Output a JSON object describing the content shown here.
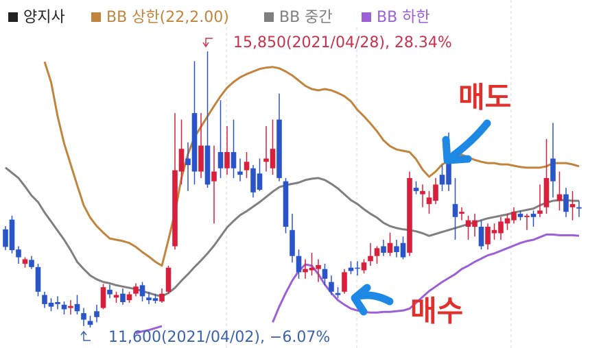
{
  "chart_data": {
    "type": "candlestick",
    "series": [
      {
        "name": "양지사",
        "type": "candlestick",
        "color": "#222222",
        "up_color": "#d81f3c",
        "down_color": "#2a55c9",
        "open": [
          13110,
          13260,
          12800,
          12580,
          12640,
          12530,
          12100,
          11980,
          11990,
          11950,
          11900,
          11960,
          11820,
          11700,
          11850,
          11900,
          12180,
          12060,
          12120,
          12020,
          12120,
          12250,
          12060,
          12050,
          12000,
          12150,
          12850,
          14000,
          14200,
          14900,
          14000,
          14400,
          13850,
          14300,
          14050,
          14300,
          14000,
          14020,
          14050,
          13970,
          14150,
          14050,
          14800,
          13850,
          13100,
          12700,
          12450,
          12480,
          12500,
          12500,
          12300,
          12130,
          12150,
          12520,
          12520,
          12480,
          12620,
          12700,
          12850,
          12750,
          12850,
          12900,
          12750,
          13750,
          13650,
          13500,
          13550,
          13950,
          14150,
          13500,
          13350,
          13150,
          13150,
          13150,
          12880,
          13050,
          13050,
          13200,
          13250,
          13350,
          13300,
          13350,
          13350,
          13450,
          14200,
          13550,
          13650,
          13450,
          13450
        ],
        "high": [
          13160,
          13320,
          12850,
          12680,
          12700,
          12580,
          12150,
          12050,
          12080,
          12000,
          12020,
          12100,
          11900,
          11780,
          11950,
          12270,
          12260,
          12150,
          12200,
          12150,
          12280,
          12300,
          12150,
          12120,
          12200,
          12550,
          14900,
          14800,
          14450,
          15700,
          14900,
          15850,
          14400,
          15100,
          14700,
          14800,
          14200,
          14300,
          14100,
          14200,
          14700,
          14800,
          15200,
          13900,
          13350,
          12800,
          12650,
          12750,
          12650,
          12580,
          12400,
          12220,
          12500,
          12620,
          12620,
          12650,
          12900,
          12850,
          12950,
          13060,
          12950,
          13000,
          14000,
          13850,
          13800,
          13700,
          13900,
          14100,
          14600,
          13900,
          13450,
          13320,
          13350,
          13250,
          13200,
          13200,
          13300,
          13350,
          13450,
          13400,
          13350,
          13400,
          13800,
          14500,
          14750,
          14000,
          13750,
          13700,
          13550
        ],
        "low": [
          12790,
          12740,
          12580,
          12520,
          12500,
          12080,
          11900,
          11850,
          11880,
          11800,
          11800,
          11800,
          11620,
          11600,
          11680,
          11880,
          12050,
          11980,
          11950,
          11980,
          12080,
          12000,
          11960,
          11970,
          11980,
          12120,
          12800,
          13800,
          13700,
          13800,
          13900,
          13750,
          13200,
          13900,
          13950,
          13900,
          13850,
          13900,
          13600,
          13700,
          14000,
          13950,
          13850,
          13050,
          12600,
          12350,
          12350,
          12400,
          12300,
          12250,
          12100,
          12050,
          12120,
          12420,
          12400,
          12430,
          12550,
          12580,
          12700,
          12700,
          12680,
          12650,
          12700,
          13650,
          13450,
          13350,
          13500,
          13700,
          13700,
          12950,
          13250,
          12950,
          13000,
          12800,
          12800,
          12950,
          12950,
          13100,
          13200,
          13250,
          13100,
          13150,
          13300,
          13350,
          13600,
          13400,
          13300,
          13250,
          13300
        ],
        "close": [
          12840,
          12790,
          12680,
          12650,
          12530,
          12150,
          11960,
          11920,
          11960,
          11880,
          11930,
          11850,
          11720,
          11640,
          11760,
          12220,
          12110,
          12100,
          11990,
          12110,
          12230,
          12080,
          12020,
          12010,
          12120,
          12520,
          14020,
          14350,
          14100,
          14000,
          14400,
          13800,
          14000,
          14050,
          14300,
          14050,
          13950,
          14150,
          13680,
          13720,
          14200,
          14350,
          13900,
          13150,
          12700,
          12450,
          12500,
          12520,
          12560,
          12350,
          12150,
          12100,
          12450,
          12470,
          12510,
          12600,
          12700,
          12820,
          12750,
          12900,
          12760,
          12680,
          13900,
          13700,
          13700,
          13600,
          13800,
          13800,
          13800,
          13300,
          13380,
          13250,
          13250,
          12850,
          13150,
          13100,
          13230,
          13280,
          13380,
          13300,
          13320,
          13300,
          13400,
          13900,
          13850,
          13650,
          13380,
          13500,
          13430
        ]
      },
      {
        "name": "BB 상한(22,2.00)",
        "type": "line",
        "color": "#c0843c",
        "values": [
          null,
          null,
          null,
          null,
          null,
          null,
          15690,
          15375,
          14850,
          14430,
          14110,
          13790,
          13480,
          13290,
          13160,
          13060,
          12970,
          12950,
          12930,
          12900,
          12840,
          12760,
          12690,
          12610,
          12550,
          12950,
          13370,
          13900,
          14270,
          14530,
          14690,
          14850,
          15010,
          15160,
          15290,
          15380,
          15450,
          15500,
          15540,
          15580,
          15600,
          15610,
          15590,
          15540,
          15480,
          15400,
          15320,
          15270,
          15250,
          15270,
          15250,
          15210,
          15160,
          15080,
          14950,
          14850,
          14740,
          14620,
          14480,
          14390,
          14340,
          14320,
          14300,
          14190,
          14030,
          13920,
          14000,
          14110,
          14160,
          14240,
          14260,
          14220,
          14180,
          14150,
          14130,
          14130,
          14110,
          14110,
          14090,
          14070,
          14060,
          14060,
          14060,
          14080,
          14130,
          14130,
          14130,
          14110,
          14080
        ]
      },
      {
        "name": "BB 중간",
        "type": "line",
        "color": "#7f7f7f",
        "values": [
          14060,
          13980,
          13900,
          13770,
          13630,
          13530,
          13370,
          13230,
          13090,
          12950,
          12790,
          12610,
          12500,
          12400,
          12340,
          12300,
          12280,
          12250,
          12230,
          12210,
          12190,
          12160,
          12130,
          12100,
          12080,
          12130,
          12210,
          12320,
          12420,
          12530,
          12630,
          12740,
          12860,
          13000,
          13140,
          13240,
          13330,
          13390,
          13460,
          13530,
          13610,
          13690,
          13760,
          13790,
          13810,
          13830,
          13870,
          13890,
          13900,
          13870,
          13810,
          13740,
          13650,
          13560,
          13500,
          13420,
          13350,
          13290,
          13210,
          13160,
          13130,
          13110,
          13100,
          13080,
          13050,
          13010,
          13040,
          13070,
          13100,
          13130,
          13160,
          13190,
          13220,
          13250,
          13280,
          13300,
          13320,
          13340,
          13370,
          13390,
          13410,
          13430,
          13480,
          13520,
          13550,
          13560,
          13560,
          13550,
          13550
        ]
      },
      {
        "name": "BB 하한",
        "type": "line",
        "color": "#9b5fd6",
        "values": [
          null,
          null,
          null,
          null,
          null,
          null,
          null,
          null,
          null,
          null,
          null,
          null,
          null,
          null,
          null,
          null,
          null,
          null,
          null,
          null,
          11510,
          11540,
          11560,
          11590,
          11620,
          null,
          null,
          null,
          null,
          null,
          null,
          null,
          null,
          null,
          null,
          null,
          null,
          null,
          null,
          null,
          null,
          11680,
          11920,
          12130,
          12320,
          12470,
          12570,
          12550,
          12420,
          12260,
          12130,
          12020,
          11950,
          11890,
          11860,
          11840,
          11830,
          11830,
          11840,
          11840,
          11850,
          11860,
          11890,
          11980,
          12070,
          12160,
          12230,
          12300,
          12360,
          12420,
          12500,
          12550,
          12610,
          12660,
          12710,
          12740,
          12780,
          12820,
          12860,
          12900,
          12930,
          12950,
          12990,
          13030,
          13030,
          13020,
          13020,
          13020,
          13010
        ]
      }
    ],
    "annotations": [
      {
        "text": "15,850(2021/04/28), 28.34%",
        "color": "#c8324b"
      },
      {
        "text": "11,600(2021/04/02), −6.07%",
        "color": "#3b62b0"
      },
      {
        "text": "매도",
        "color": "#e0302c"
      },
      {
        "text": "매수",
        "color": "#e0302c"
      }
    ]
  }
}
